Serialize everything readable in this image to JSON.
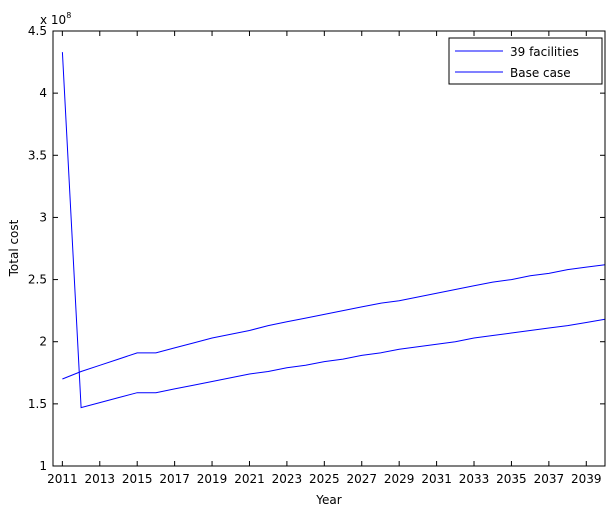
{
  "chart_data": {
    "type": "line",
    "xlabel": "Year",
    "ylabel": "Total cost",
    "y_exponent_label": "x 10",
    "y_exponent_power": "8",
    "xlim": [
      2010.5,
      2040
    ],
    "ylim": [
      1,
      4.5
    ],
    "x_ticks": [
      2011,
      2013,
      2015,
      2017,
      2019,
      2021,
      2023,
      2025,
      2027,
      2029,
      2031,
      2033,
      2035,
      2037,
      2039
    ],
    "x_tick_labels": [
      "2011",
      "2013",
      "2015",
      "2017",
      "2019",
      "2021",
      "2023",
      "2025",
      "2027",
      "2029",
      "2031",
      "2033",
      "2035",
      "2037",
      "2039"
    ],
    "y_ticks": [
      1,
      1.5,
      2,
      2.5,
      3,
      3.5,
      4,
      4.5
    ],
    "y_tick_labels": [
      "1",
      "1.5",
      "2",
      "2.5",
      "3",
      "3.5",
      "4",
      "4.5"
    ],
    "legend_position": "top-right",
    "grid": false,
    "series": [
      {
        "name": "39 facilities",
        "color": "#0000ff",
        "x": [
          2011,
          2012,
          2013,
          2014,
          2015,
          2016,
          2017,
          2018,
          2019,
          2020,
          2021,
          2022,
          2023,
          2024,
          2025,
          2026,
          2027,
          2028,
          2029,
          2030,
          2031,
          2032,
          2033,
          2034,
          2035,
          2036,
          2037,
          2038,
          2039,
          2040
        ],
        "values": [
          4.33,
          1.47,
          1.51,
          1.55,
          1.59,
          1.59,
          1.62,
          1.65,
          1.68,
          1.71,
          1.74,
          1.76,
          1.79,
          1.81,
          1.84,
          1.86,
          1.89,
          1.91,
          1.94,
          1.96,
          1.98,
          2.0,
          2.03,
          2.05,
          2.07,
          2.09,
          2.11,
          2.13,
          2.155,
          2.18
        ]
      },
      {
        "name": "Base case",
        "color": "#0000ff",
        "x": [
          2011,
          2012,
          2013,
          2014,
          2015,
          2016,
          2017,
          2018,
          2019,
          2020,
          2021,
          2022,
          2023,
          2024,
          2025,
          2026,
          2027,
          2028,
          2029,
          2030,
          2031,
          2032,
          2033,
          2034,
          2035,
          2036,
          2037,
          2038,
          2039,
          2040
        ],
        "values": [
          1.7,
          1.76,
          1.81,
          1.86,
          1.91,
          1.91,
          1.95,
          1.99,
          2.03,
          2.06,
          2.09,
          2.13,
          2.16,
          2.19,
          2.22,
          2.25,
          2.28,
          2.31,
          2.33,
          2.36,
          2.39,
          2.42,
          2.45,
          2.48,
          2.5,
          2.53,
          2.55,
          2.58,
          2.6,
          2.62
        ]
      }
    ]
  }
}
